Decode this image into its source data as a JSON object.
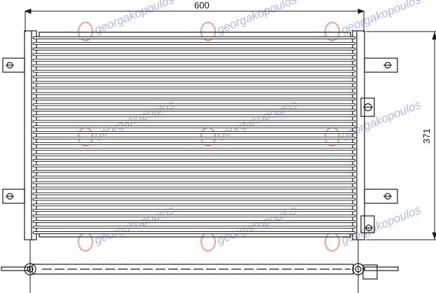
{
  "drawing": {
    "width_dimension": "600",
    "height_dimension": "371",
    "line_color": "#1a1a1a",
    "fin_count": 36
  },
  "watermark": {
    "text": "georgakopoulos",
    "logo_color": "#e0604a",
    "text_color": "#6f7fd8"
  }
}
